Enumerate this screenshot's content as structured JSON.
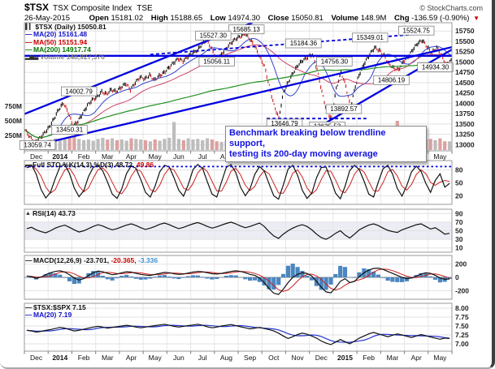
{
  "header": {
    "symbol": "$TSX",
    "name": "TSX Composite Index",
    "exchange": "TSE",
    "date": "26-May-2015",
    "copyright": "© StockCharts.com",
    "quote": {
      "open_label": "Open",
      "open": "15181.02",
      "high_label": "High",
      "high": "15188.65",
      "low_label": "Low",
      "low": "14974.30",
      "close_label": "Close",
      "close": "15050.81",
      "volume_label": "Volume",
      "volume": "148.9M",
      "chg_label": "Chg",
      "chg": "-136.59 (-0.90%)",
      "chg_direction": "down"
    }
  },
  "annotation": {
    "line1": "Benchmark breaking below trendline support,",
    "line2": "testing its 200-day moving average"
  },
  "colors": {
    "trend_blue": "#0000e0",
    "candle_up": "#101010",
    "candle_down": "#cc2020",
    "ma20": "#3344cc",
    "ma50": "#cc4466",
    "ma200": "#209020",
    "volume_gray": "#bdbdbd",
    "volume_red": "#dda0a0",
    "macd_hist": "#4a86c0",
    "annotation_blue": "#1313e0"
  },
  "chart_data": {
    "type": "line",
    "title": "$TSX Composite Index multi-panel daily chart",
    "x_months": [
      "Dec",
      "2014",
      "Feb",
      "Mar",
      "Apr",
      "May",
      "Jun",
      "Jul",
      "Aug",
      "Sep",
      "Oct",
      "Nov",
      "Dec",
      "2015",
      "Feb",
      "Mar",
      "Apr",
      "May"
    ],
    "x_bold": [
      1,
      13
    ],
    "panels": {
      "price": {
        "legend_main": "$TSX (Daily) 15050.81",
        "legend_ma20": "MA(20) 15161.48",
        "legend_ma50": "MA(50) 15151.94",
        "legend_ma200": "MA(200) 14917.74",
        "legend_volume": "Volume 148,927,376",
        "ylim": [
          12850,
          15950
        ],
        "yticks": [
          "15750",
          "15500",
          "15250",
          "15000",
          "14750",
          "14500",
          "14250",
          "14000",
          "13750",
          "13500",
          "13250",
          "13000"
        ],
        "ytick_values": [
          15750,
          15500,
          15250,
          15000,
          14750,
          14500,
          14250,
          14000,
          13750,
          13500,
          13250,
          13000
        ],
        "close": [
          13350,
          13180,
          13060,
          13150,
          13280,
          13420,
          13620,
          13850,
          14002,
          13780,
          13450,
          13560,
          13750,
          13950,
          14080,
          14150,
          14280,
          14220,
          14330,
          14280,
          14380,
          14480,
          14330,
          14500,
          14630,
          14590,
          14680,
          14560,
          14660,
          14740,
          14860,
          14980,
          15080,
          15020,
          15130,
          15210,
          15280,
          15440,
          15527,
          15310,
          15056,
          15180,
          15320,
          15460,
          15560,
          15620,
          15685,
          15540,
          15380,
          15120,
          14900,
          14420,
          13950,
          13647,
          14280,
          14520,
          14740,
          14920,
          15040,
          15110,
          15184,
          14820,
          14280,
          13800,
          13636,
          14350,
          14756,
          14420,
          13893,
          14420,
          14750,
          15000,
          15180,
          15349,
          15280,
          15150,
          14950,
          14850,
          14806,
          15000,
          15120,
          15300,
          15450,
          15524,
          15360,
          15220,
          15349,
          15150,
          14934,
          15050
        ],
        "volume_m": [
          120,
          140,
          160,
          150,
          130,
          180,
          200,
          170,
          190,
          210,
          230,
          190,
          170,
          180,
          160,
          190,
          210,
          180,
          200,
          170,
          180,
          160,
          200,
          190,
          180,
          170,
          150,
          180,
          160,
          190,
          210,
          480,
          190,
          170,
          200,
          180,
          190,
          170,
          200,
          180,
          150,
          140,
          160,
          150,
          170,
          200,
          220,
          210,
          230,
          250,
          300,
          380,
          420,
          350,
          280,
          240,
          220,
          230,
          210,
          200,
          280,
          320,
          380,
          420,
          350,
          300,
          280,
          260,
          240,
          220,
          230,
          210,
          200,
          190,
          180,
          220,
          350,
          240,
          500,
          230,
          210,
          190,
          230,
          200,
          180,
          190,
          170,
          200,
          150,
          149
        ],
        "volume_ticks": [
          {
            "label": "750M",
            "value": 750
          },
          {
            "label": "500M",
            "value": 500
          },
          {
            "label": "250M",
            "value": 250
          }
        ],
        "trendlines": [
          {
            "points": [
              [
                0,
                13740
              ],
              [
                9.6,
                15950
              ]
            ]
          },
          {
            "points": [
              [
                0,
                12920
              ],
              [
                18,
                15360
              ]
            ]
          },
          {
            "points": [
              [
                12.4,
                13430
              ],
              [
                18,
                15300
              ]
            ]
          },
          {
            "points": [
              [
                0,
                15150
              ],
              [
                18,
                15150
              ]
            ]
          }
        ],
        "dashed_lines": [
          {
            "points": [
              [
                5.3,
                15180
              ],
              [
                17.2,
                15700
              ]
            ]
          },
          {
            "points": [
              [
                10.2,
                13630
              ],
              [
                14.4,
                13630
              ]
            ]
          }
        ],
        "price_labels": [
          {
            "text": "15685.13",
            "m": 9.35,
            "v": 15790
          },
          {
            "text": "15527.30",
            "m": 7.95,
            "v": 15640
          },
          {
            "text": "15056.11",
            "m": 8.1,
            "v": 15010
          },
          {
            "text": "14002.79",
            "m": 2.3,
            "v": 14290
          },
          {
            "text": "13450.31",
            "m": 1.9,
            "v": 13360
          },
          {
            "text": "13059.74",
            "m": 0.55,
            "v": 12990
          },
          {
            "text": "15184.36",
            "m": 11.75,
            "v": 15450
          },
          {
            "text": "15349.01",
            "m": 14.55,
            "v": 15590
          },
          {
            "text": "15524.75",
            "m": 16.5,
            "v": 15760
          },
          {
            "text": "14756.30",
            "m": 13.05,
            "v": 15010
          },
          {
            "text": "14806.19",
            "m": 15.45,
            "v": 14560
          },
          {
            "text": "14934.30",
            "m": 17.3,
            "v": 14870
          },
          {
            "text": "13892.57",
            "m": 13.45,
            "v": 13860
          },
          {
            "text": "13646.79",
            "m": 10.95,
            "v": 13510
          },
          {
            "text": "13635.53",
            "m": 12.75,
            "v": 13440
          }
        ]
      },
      "sto": {
        "legend_black": "Full STO %K(14,3) %D(3) 48.72,",
        "legend_red": " 49.86",
        "yticks": [
          80,
          50,
          20
        ],
        "dotted_level": 88,
        "k": [
          85,
          92,
          70,
          35,
          15,
          28,
          60,
          88,
          93,
          72,
          38,
          18,
          32,
          65,
          86,
          91,
          78,
          52,
          24,
          14,
          36,
          72,
          90,
          84,
          58,
          28,
          17,
          42,
          76,
          91,
          87,
          62,
          33,
          19,
          46,
          81,
          93,
          84,
          53,
          24,
          17,
          52,
          86,
          93,
          74,
          40,
          20,
          36,
          70,
          88,
          78,
          48,
          20,
          12,
          45,
          82,
          91,
          68,
          33,
          14,
          26,
          62,
          86,
          87,
          58,
          26,
          13,
          42,
          79,
          91,
          81,
          54,
          24,
          17,
          52,
          83,
          91,
          71,
          37,
          19,
          44,
          76,
          89,
          77,
          49,
          28,
          56,
          71,
          40,
          49
        ]
      },
      "rsi": {
        "legend": "RSI(14) 43.73",
        "yticks": [
          90,
          70,
          50,
          30,
          10
        ],
        "band": [
          30,
          70
        ],
        "values": [
          55,
          58,
          52,
          48,
          45,
          50,
          56,
          60,
          63,
          58,
          52,
          47,
          50,
          55,
          60,
          64,
          61,
          56,
          52,
          55,
          59,
          63,
          66,
          62,
          57,
          53,
          56,
          60,
          65,
          68,
          64,
          59,
          55,
          58,
          62,
          66,
          69,
          65,
          60,
          56,
          59,
          63,
          67,
          70,
          66,
          61,
          57,
          60,
          64,
          68,
          60,
          48,
          38,
          32,
          42,
          50,
          56,
          61,
          64,
          60,
          52,
          42,
          34,
          30,
          36,
          44,
          50,
          40,
          33,
          42,
          52,
          58,
          63,
          66,
          62,
          56,
          51,
          48,
          46,
          52,
          56,
          60,
          64,
          66,
          60,
          54,
          57,
          50,
          42,
          44
        ]
      },
      "macd": {
        "legend_black": "MACD(12,26,9) -23.701,",
        "legend_red": " -20.365,",
        "legend_blue": " -3.336",
        "ylim": [
          -332,
          332
        ],
        "yticks": [
          200,
          0,
          -200
        ],
        "values": [
          20,
          10,
          -15,
          5,
          40,
          70,
          90,
          100,
          80,
          40,
          -10,
          -40,
          -20,
          30,
          70,
          95,
          85,
          60,
          40,
          50,
          70,
          85,
          80,
          60,
          45,
          35,
          30,
          45,
          60,
          75,
          70,
          55,
          45,
          50,
          65,
          80,
          90,
          85,
          70,
          55,
          50,
          60,
          75,
          90,
          100,
          90,
          70,
          45,
          30,
          -10,
          -80,
          -170,
          -240,
          -260,
          -180,
          -80,
          0,
          45,
          70,
          60,
          20,
          -60,
          -150,
          -220,
          -235,
          -160,
          -60,
          -20,
          -80,
          -60,
          10,
          70,
          110,
          135,
          140,
          120,
          90,
          60,
          30,
          0,
          -20,
          -10,
          20,
          50,
          70,
          60,
          30,
          -10,
          -30,
          -24
        ]
      },
      "ratio": {
        "legend_black": "$TSX:$SPX 7.15",
        "legend_blue": "MA(20) 7.19",
        "ylim": [
          6.795,
          8.136
        ],
        "yticks": [
          "8.00",
          "7.75",
          "7.50",
          "7.25",
          "7.00"
        ],
        "ytick_values": [
          8.0,
          7.75,
          7.5,
          7.25,
          7.0
        ],
        "values": [
          7.38,
          7.36,
          7.33,
          7.35,
          7.38,
          7.4,
          7.43,
          7.46,
          7.44,
          7.4,
          7.36,
          7.38,
          7.41,
          7.44,
          7.47,
          7.49,
          7.47,
          7.44,
          7.46,
          7.48,
          7.5,
          7.52,
          7.5,
          7.47,
          7.45,
          7.47,
          7.49,
          7.51,
          7.53,
          7.55,
          7.52,
          7.49,
          7.47,
          7.49,
          7.51,
          7.53,
          7.55,
          7.52,
          7.48,
          7.45,
          7.47,
          7.5,
          7.52,
          7.54,
          7.51,
          7.48,
          7.45,
          7.42,
          7.44,
          7.46,
          7.43,
          7.4,
          7.36,
          7.3,
          7.22,
          7.15,
          7.2,
          7.26,
          7.3,
          7.27,
          7.22,
          7.16,
          7.08,
          7.02,
          6.98,
          7.05,
          7.12,
          7.06,
          7.0,
          7.08,
          7.16,
          7.22,
          7.28,
          7.32,
          7.28,
          7.24,
          7.2,
          7.24,
          7.28,
          7.25,
          7.21,
          7.18,
          7.22,
          7.26,
          7.23,
          7.19,
          7.16,
          7.13,
          7.16,
          7.15
        ]
      }
    }
  }
}
